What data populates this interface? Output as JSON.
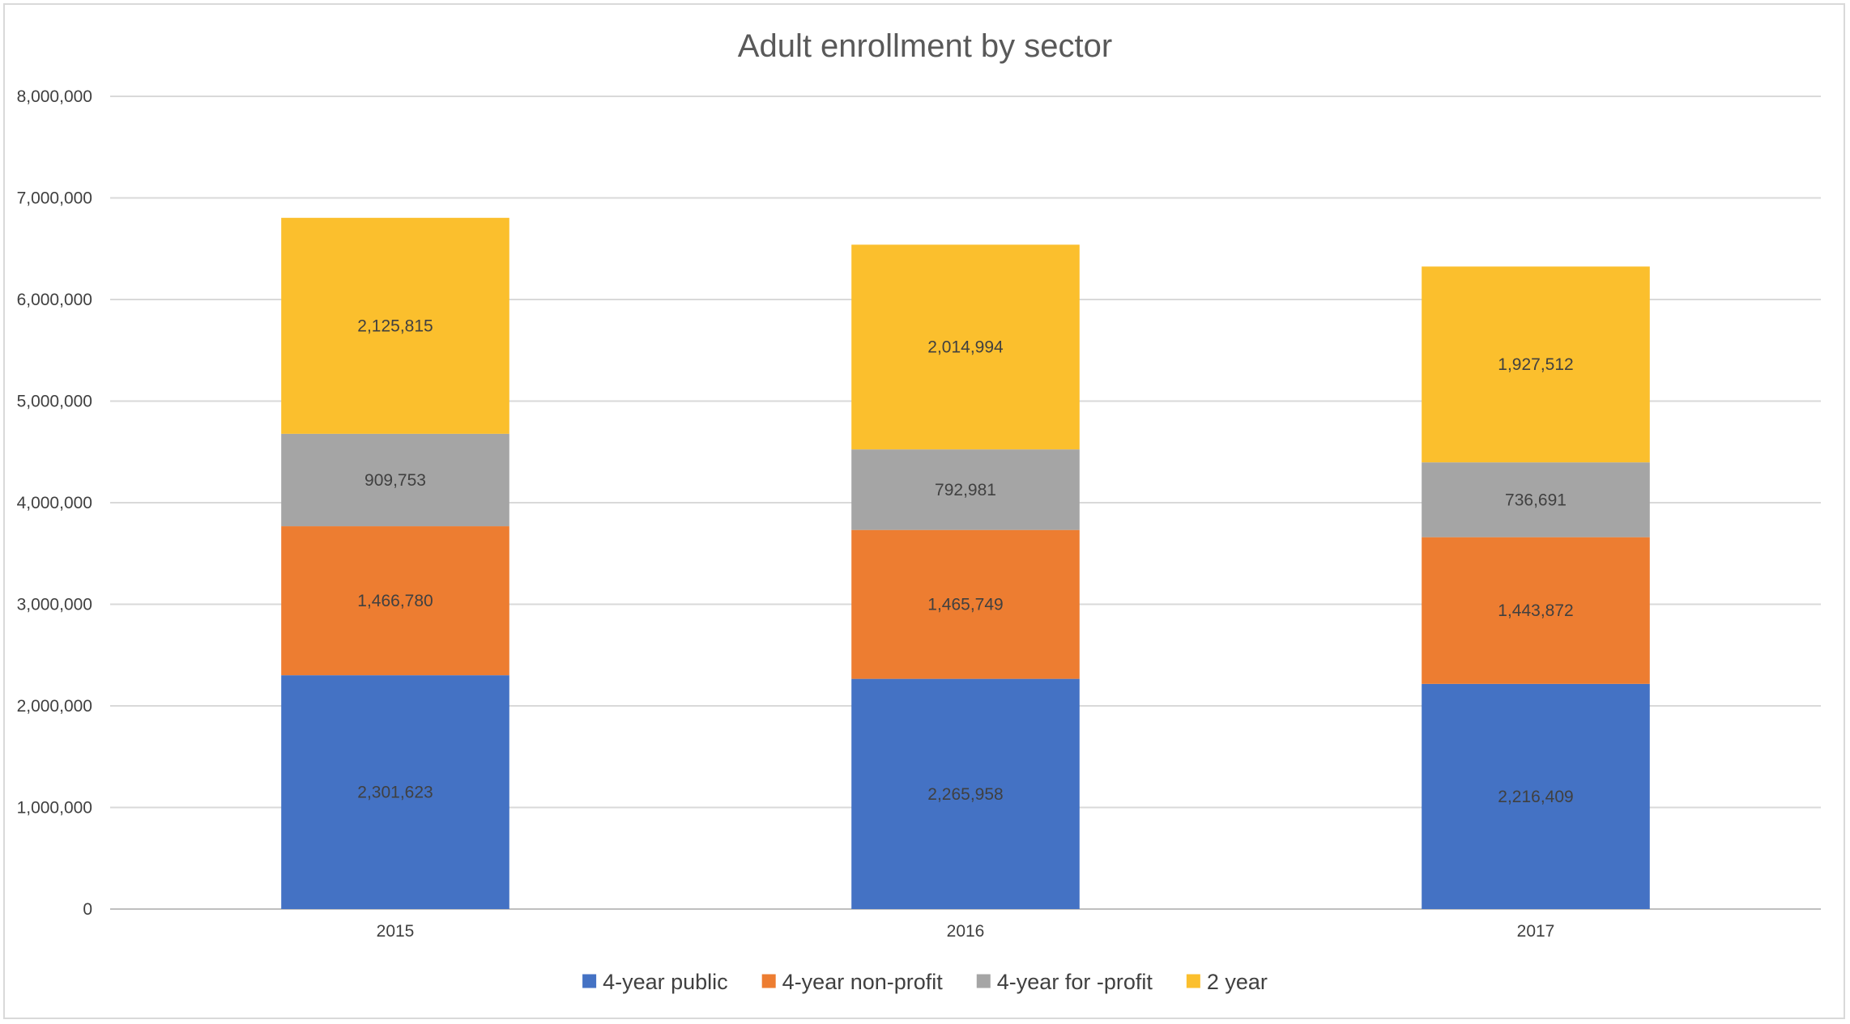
{
  "chart_data": {
    "type": "bar",
    "stacked": true,
    "title": "Adult enrollment by sector",
    "xlabel": "",
    "ylabel": "",
    "categories": [
      "2015",
      "2016",
      "2017"
    ],
    "series": [
      {
        "name": "4-year public",
        "color": "#4472c4",
        "values": [
          2301623,
          2265958,
          2216409
        ],
        "labels": [
          "2,301,623",
          "2,265,958",
          "2,216,409"
        ]
      },
      {
        "name": "4-year non-profit",
        "color": "#ed7d31",
        "values": [
          1466780,
          1465749,
          1443872
        ],
        "labels": [
          "1,466,780",
          "1,465,749",
          "1,443,872"
        ]
      },
      {
        "name": "4-year for -profit",
        "color": "#a5a5a5",
        "values": [
          909753,
          792981,
          736691
        ],
        "labels": [
          "909,753",
          "792,981",
          "736,691"
        ]
      },
      {
        "name": "2 year",
        "color": "#fbbf2d",
        "values": [
          2125815,
          2014994,
          1927512
        ],
        "labels": [
          "2,125,815",
          "2,014,994",
          "1,927,512"
        ]
      }
    ],
    "ylim": [
      0,
      8000000
    ],
    "yticks": [
      0,
      1000000,
      2000000,
      3000000,
      4000000,
      5000000,
      6000000,
      7000000,
      8000000
    ],
    "ytick_labels": [
      "0",
      "1,000,000",
      "2,000,000",
      "3,000,000",
      "4,000,000",
      "5,000,000",
      "6,000,000",
      "7,000,000",
      "8,000,000"
    ],
    "grid": true,
    "legend_position": "bottom-center"
  }
}
